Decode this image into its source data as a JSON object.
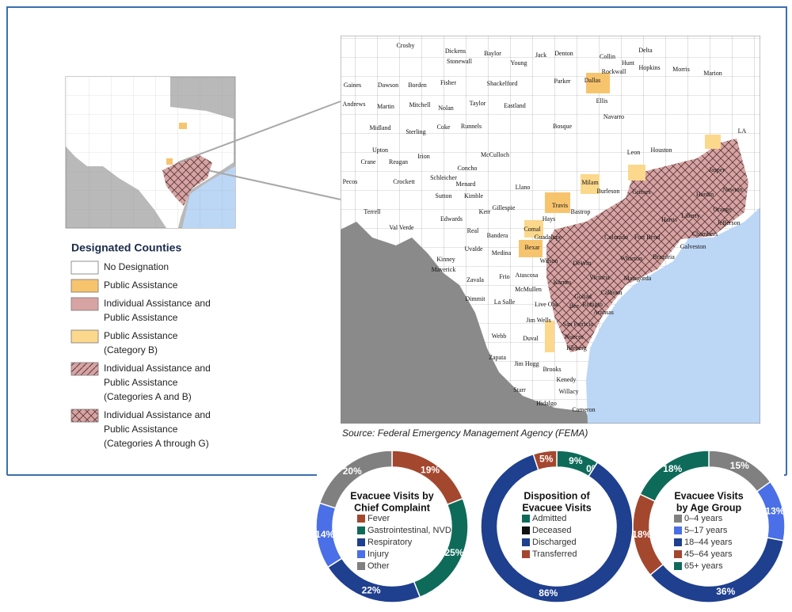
{
  "map": {
    "legend_title": "Designated Counties",
    "legend": [
      {
        "label": [
          "No Designation"
        ],
        "color": "#ffffff"
      },
      {
        "label": [
          "Public Assistance"
        ],
        "color": "#f7c46e"
      },
      {
        "label": [
          "Individual Assistance and",
          "Public Assistance"
        ],
        "color": "#d8a3a3"
      },
      {
        "label": [
          "Public Assistance",
          "(Category B)"
        ],
        "color": "#fcd88c"
      },
      {
        "label": [
          "Individual Assistance and",
          "Public Assistance",
          "(Categories A and B)"
        ],
        "color": "#d8a3a3",
        "pattern": "diagonal"
      },
      {
        "label": [
          "Individual Assistance and",
          "Public Assistance",
          "(Categories A through G)"
        ],
        "color": "#d8a3a3",
        "pattern": "crosshatch"
      }
    ],
    "source": "Source: Federal Emergency Management Agency (FEMA)",
    "county_labels": [
      "Crosby",
      "Dickens",
      "Baylor",
      "Jack",
      "Denton",
      "Collin",
      "Hunt",
      "Delta",
      "Stonewall",
      "Young",
      "Dallas",
      "Rockwall",
      "Hopkins",
      "Morris",
      "Marion",
      "Gaines",
      "Dawson",
      "Borden",
      "Fisher",
      "Shackelford",
      "Parker",
      "Andrews",
      "Martin",
      "Mitchell",
      "Nolan",
      "Taylor",
      "Eastland",
      "Ellis",
      "Midland",
      "Sterling",
      "Coke",
      "Runnels",
      "Bosque",
      "Navarro",
      "Leon",
      "Houston",
      "Crane",
      "Upton",
      "Reagan",
      "Irion",
      "Concho",
      "McCulloch",
      "Pecos",
      "Crockett",
      "Schleicher",
      "Sutton",
      "Kimble",
      "Menard",
      "Llano",
      "Milam",
      "Burleson",
      "Grimes",
      "Jasper",
      "Newton",
      "Hardin",
      "Orange",
      "Terrell",
      "Val Verde",
      "Edwards",
      "Kerr",
      "Gillespie",
      "Travis",
      "Hays",
      "Bastrop",
      "Harris",
      "Liberty",
      "Jefferson",
      "Chambers",
      "Real",
      "Bandera",
      "Comal",
      "Guadalupe",
      "Colorado",
      "Fort Bend",
      "Galveston",
      "Kinney",
      "Maverick",
      "Uvalde",
      "Medina",
      "Bexar",
      "Wilson",
      "Wharton",
      "Brazoria",
      "Zavala",
      "Frio",
      "Atascosa",
      "DeWitt",
      "Victoria",
      "Matagorda",
      "Dimmit",
      "McMullen",
      "La Salle",
      "Live Oak",
      "Karnes",
      "Goliad",
      "Calhoun",
      "Bee",
      "Refugio",
      "Aransas",
      "Jim Wells",
      "San Patricio",
      "Nueces",
      "Kleberg",
      "Webb",
      "Duval",
      "Zapata",
      "Jim Hogg",
      "Brooks",
      "Kenedy",
      "Starr",
      "Willacy",
      "Hidalgo",
      "Cameron",
      "LA"
    ]
  },
  "chart_data": [
    {
      "type": "pie",
      "title": [
        "Evacuee Visits by",
        "Chief Complaint"
      ],
      "categories": [
        "Fever",
        "Gastrointestinal, NVD",
        "Respiratory",
        "Injury",
        "Other"
      ],
      "values": [
        19,
        25,
        22,
        14,
        20
      ],
      "value_labels": [
        "19%",
        "25%",
        "22%",
        "14%",
        "20%"
      ],
      "colors": [
        "#a4472f",
        "#0e6b5a",
        "#1f3f8f",
        "#4a6fe6",
        "#808080"
      ]
    },
    {
      "type": "pie",
      "title": [
        "Disposition of",
        "Evacuee Visits"
      ],
      "categories": [
        "Admitted",
        "Deceased",
        "Discharged",
        "Transferred"
      ],
      "values": [
        9,
        0,
        86,
        5
      ],
      "value_labels": [
        "9%",
        "0%",
        "86%",
        "5%"
      ],
      "colors": [
        "#0e6b5a",
        "#111111",
        "#1f3f8f",
        "#a4472f"
      ]
    },
    {
      "type": "pie",
      "title": [
        "Evacuee Visits",
        "by Age Group"
      ],
      "categories": [
        "0–4 years",
        "5–17 years",
        "18–44 years",
        "45–64 years",
        "65+ years"
      ],
      "values": [
        15,
        13,
        36,
        18,
        18
      ],
      "value_labels": [
        "15%",
        "13%",
        "36%",
        "18%",
        "18%"
      ],
      "colors": [
        "#808080",
        "#4a6fe6",
        "#1f3f8f",
        "#a4472f",
        "#0e6b5a"
      ]
    }
  ]
}
